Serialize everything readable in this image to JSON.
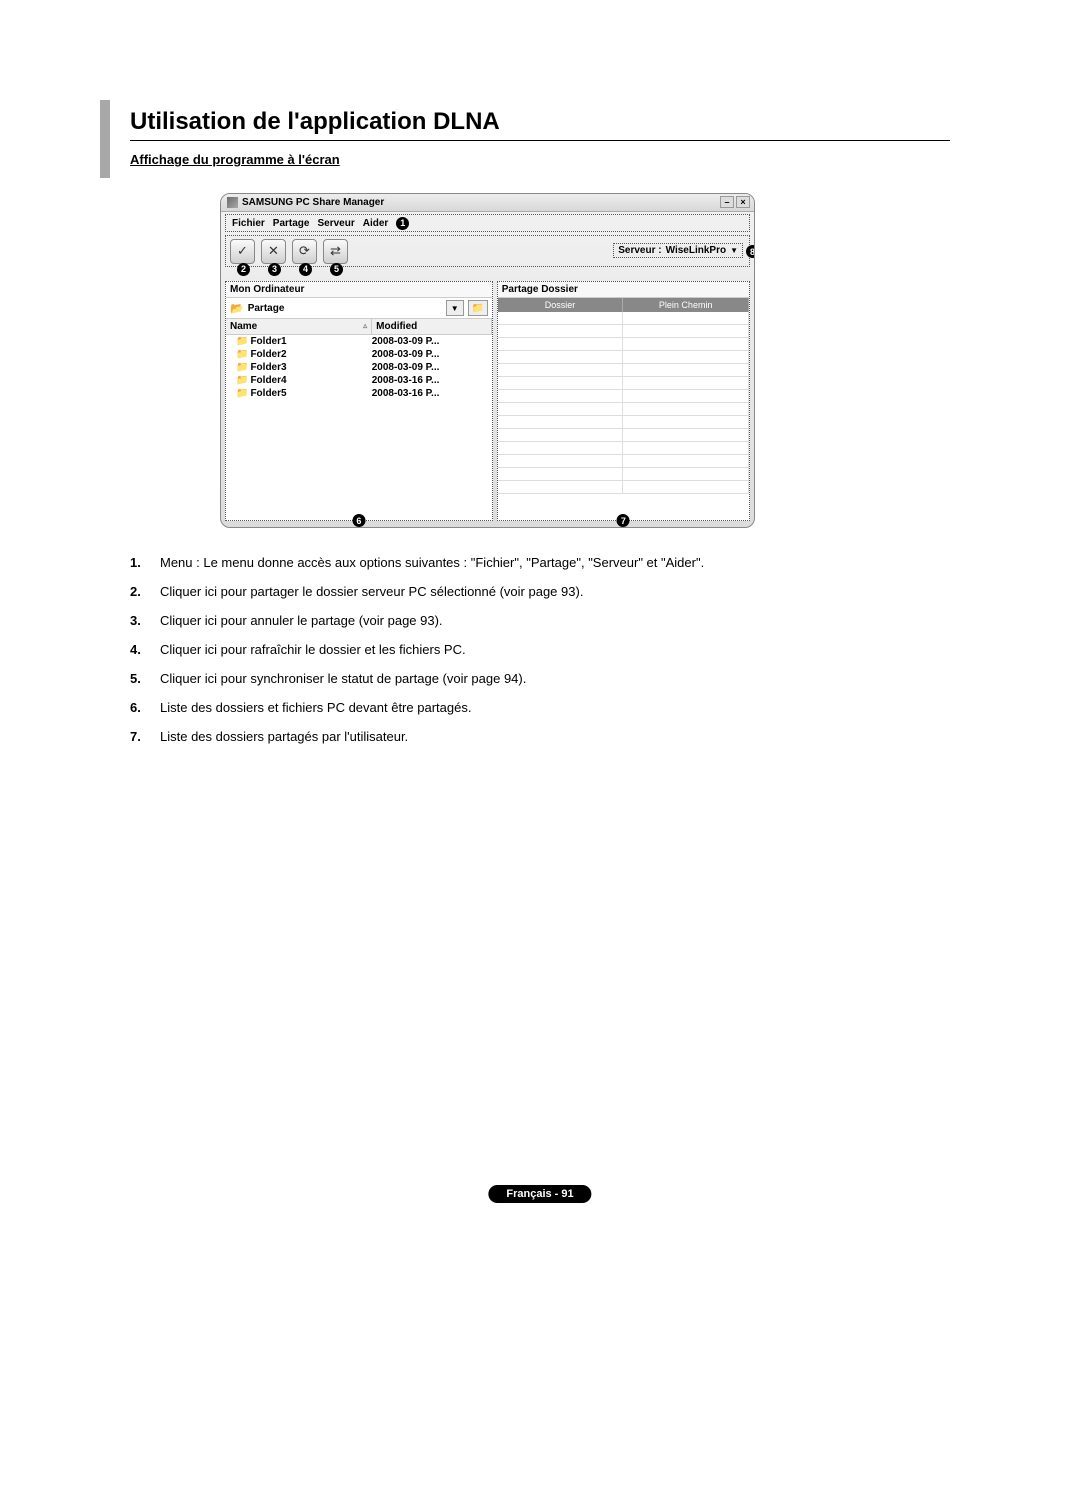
{
  "title": "Utilisation de l'application DLNA",
  "subtitle": "Affichage du programme à l'écran",
  "footer": "Français - 91",
  "window": {
    "title": "SAMSUNG PC Share Manager",
    "menu": {
      "items": [
        "Fichier",
        "Partage",
        "Serveur",
        "Aider"
      ]
    },
    "serveur_label": "Serveur :",
    "serveur_value": "WiseLinkPro",
    "left_panel": {
      "header": "Mon Ordinateur",
      "path": "Partage",
      "col_name": "Name",
      "col_modified": "Modified",
      "folders": [
        {
          "name": "Folder1",
          "modified": "2008-03-09 P..."
        },
        {
          "name": "Folder2",
          "modified": "2008-03-09 P..."
        },
        {
          "name": "Folder3",
          "modified": "2008-03-09 P..."
        },
        {
          "name": "Folder4",
          "modified": "2008-03-16 P..."
        },
        {
          "name": "Folder5",
          "modified": "2008-03-16 P..."
        }
      ]
    },
    "right_panel": {
      "header": "Partage Dossier",
      "col_dossier": "Dossier",
      "col_chemin": "Plein Chemin"
    },
    "callouts": [
      "1",
      "2",
      "3",
      "4",
      "5",
      "6",
      "7",
      "8"
    ]
  },
  "descriptions": [
    "Menu : Le menu donne accès aux options suivantes : \"Fichier\", \"Partage\", \"Serveur\" et \"Aider\".",
    "Cliquer ici pour partager le dossier serveur PC sélectionné (voir page 93).",
    "Cliquer ici pour annuler le partage (voir page 93).",
    "Cliquer ici pour rafraîchir le dossier et les fichiers PC.",
    "Cliquer ici pour synchroniser le statut de partage (voir page 94).",
    "Liste des dossiers et fichiers PC devant être partagés.",
    "Liste des dossiers partagés par l'utilisateur."
  ],
  "colors": {
    "bar": "#a8a8a8",
    "text": "#000000",
    "footer_bg": "#000000",
    "footer_text": "#ffffff"
  }
}
